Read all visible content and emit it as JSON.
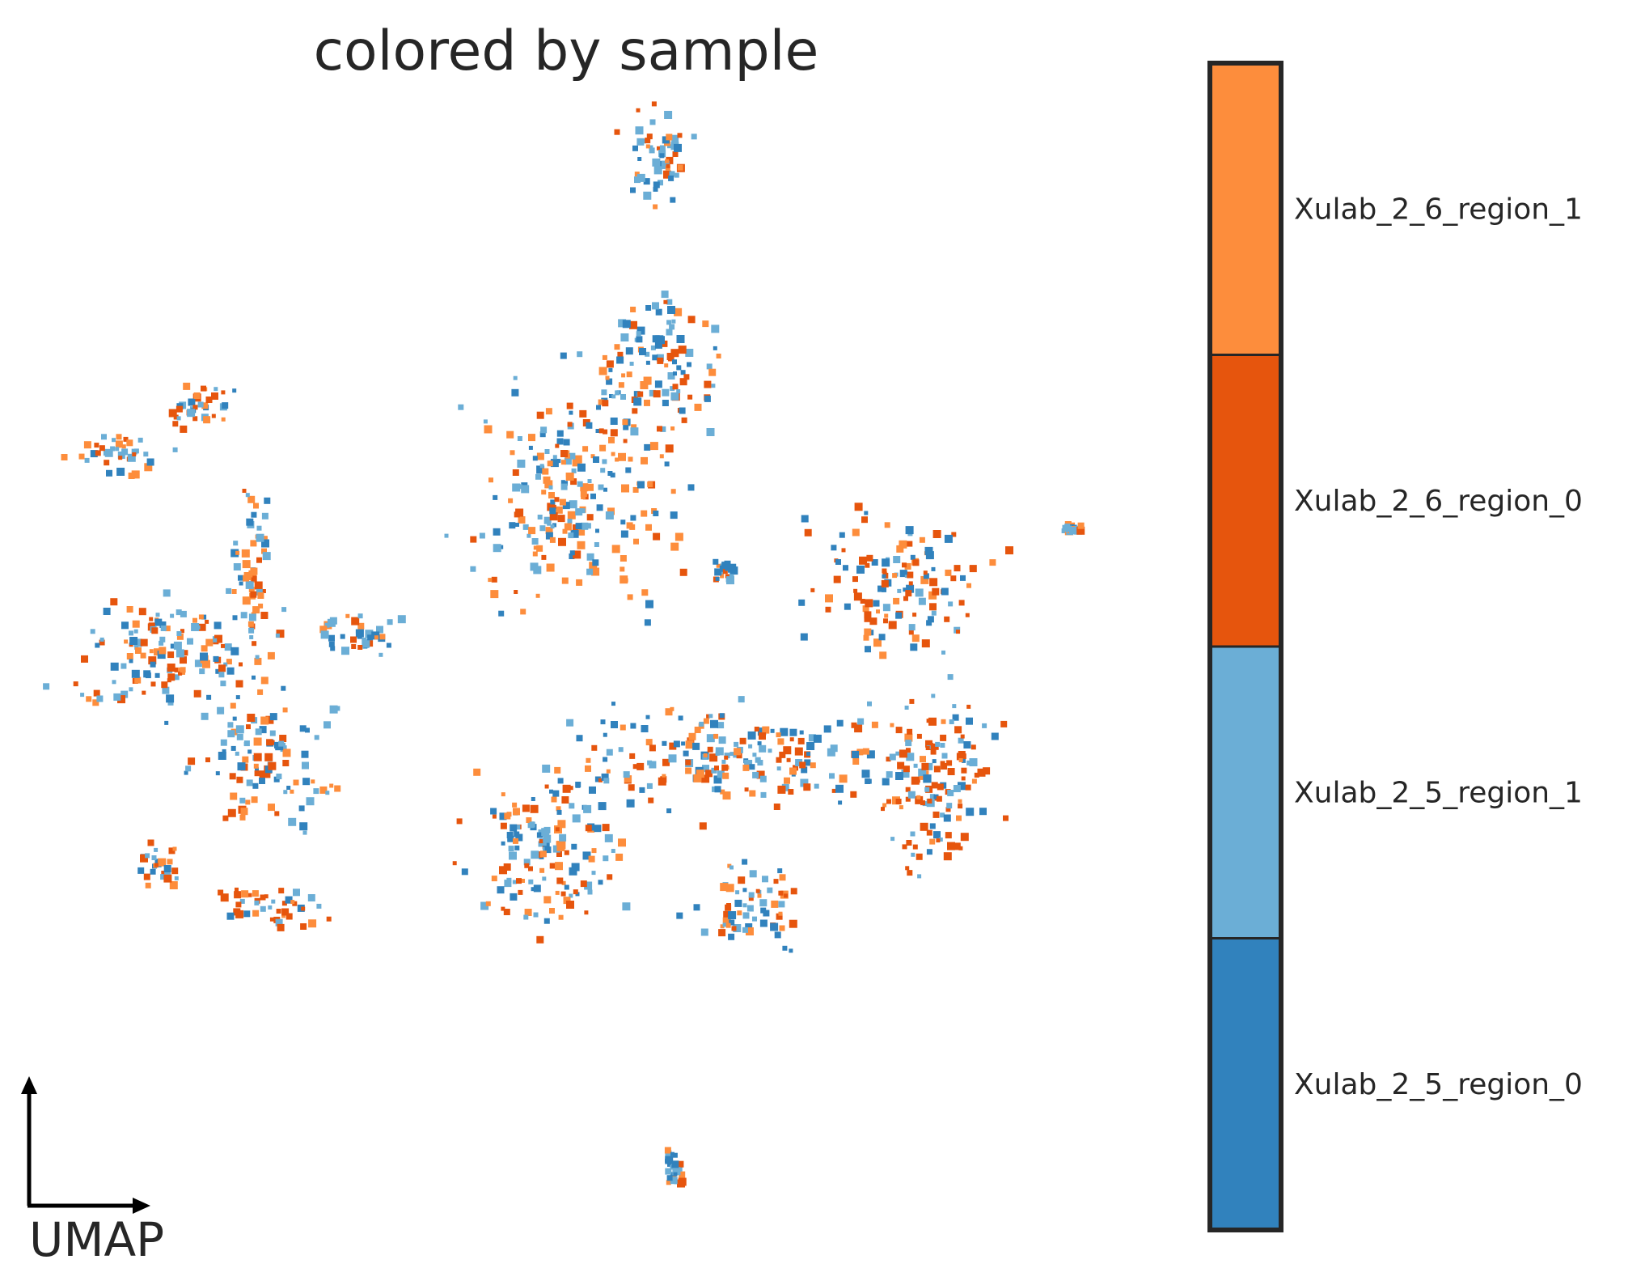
{
  "chart_data": {
    "type": "scatter",
    "title": "colored by sample",
    "axis_indicator_label": "UMAP",
    "xlabel": "",
    "ylabel": "",
    "grid": false,
    "legend": {
      "type": "categorical-colorbar",
      "placement": "right"
    },
    "categories": [
      {
        "name": "Xulab_2_6_region_1",
        "color": "#fd8d3c"
      },
      {
        "name": "Xulab_2_6_region_0",
        "color": "#e6550d"
      },
      {
        "name": "Xulab_2_5_region_1",
        "color": "#6baed6"
      },
      {
        "name": "Xulab_2_5_region_0",
        "color": "#3182bd"
      }
    ],
    "clusters": [
      {
        "label": "top island",
        "cx": 8.1,
        "cy": 9.3,
        "sx": 0.3,
        "sy": 0.5,
        "weights": [
          0.2,
          0.3,
          0.3,
          0.2
        ]
      },
      {
        "label": "small upper-left",
        "cx": 1.9,
        "cy": 5.8,
        "sx": 0.3,
        "sy": 0.2,
        "weights": [
          0.2,
          0.3,
          0.2,
          0.3
        ]
      },
      {
        "label": "far-left arm",
        "cx": 0.9,
        "cy": 5.1,
        "sx": 0.4,
        "sy": 0.2,
        "weights": [
          0.2,
          0.3,
          0.4,
          0.1
        ]
      },
      {
        "label": "left main cluster",
        "cx": 1.5,
        "cy": 2.3,
        "sx": 0.9,
        "sy": 0.6,
        "weights": [
          0.2,
          0.35,
          0.3,
          0.15
        ]
      },
      {
        "label": "left bridge",
        "cx": 2.6,
        "cy": 3.6,
        "sx": 0.2,
        "sy": 0.8,
        "weights": [
          0.35,
          0.15,
          0.3,
          0.2
        ]
      },
      {
        "label": "left lower lobe",
        "cx": 2.8,
        "cy": 0.9,
        "sx": 0.6,
        "sy": 0.6,
        "weights": [
          0.2,
          0.25,
          0.3,
          0.25
        ]
      },
      {
        "label": "left far-lower",
        "cx": 1.4,
        "cy": -0.6,
        "sx": 0.2,
        "sy": 0.2,
        "weights": [
          0.2,
          0.2,
          0.3,
          0.3
        ]
      },
      {
        "label": "left bottom lobe",
        "cx": 2.9,
        "cy": -1.2,
        "sx": 0.5,
        "sy": 0.2,
        "weights": [
          0.2,
          0.5,
          0.2,
          0.1
        ]
      },
      {
        "label": "left right arm",
        "cx": 4.1,
        "cy": 2.6,
        "sx": 0.4,
        "sy": 0.2,
        "weights": [
          0.1,
          0.2,
          0.3,
          0.4
        ]
      },
      {
        "label": "center upper",
        "cx": 7.0,
        "cy": 4.6,
        "sx": 0.9,
        "sy": 1.0,
        "weights": [
          0.35,
          0.15,
          0.3,
          0.2
        ]
      },
      {
        "label": "center-top arm",
        "cx": 8.1,
        "cy": 6.3,
        "sx": 0.6,
        "sy": 0.7,
        "weights": [
          0.2,
          0.2,
          0.3,
          0.3
        ]
      },
      {
        "label": "center lower-left",
        "cx": 6.6,
        "cy": -0.4,
        "sx": 0.7,
        "sy": 0.8,
        "weights": [
          0.25,
          0.25,
          0.25,
          0.25
        ]
      },
      {
        "label": "center bridge",
        "cx": 9.2,
        "cy": 0.9,
        "sx": 1.6,
        "sy": 0.5,
        "weights": [
          0.2,
          0.2,
          0.3,
          0.3
        ]
      },
      {
        "label": "center bottom lobe",
        "cx": 9.3,
        "cy": -1.2,
        "sx": 0.5,
        "sy": 0.4,
        "weights": [
          0.2,
          0.3,
          0.2,
          0.3
        ]
      },
      {
        "label": "right upper arm",
        "cx": 11.3,
        "cy": 3.3,
        "sx": 0.8,
        "sy": 0.6,
        "weights": [
          0.15,
          0.35,
          0.2,
          0.3
        ]
      },
      {
        "label": "right main",
        "cx": 11.8,
        "cy": 0.6,
        "sx": 0.6,
        "sy": 0.9,
        "weights": [
          0.1,
          0.4,
          0.3,
          0.2
        ]
      },
      {
        "label": "small center",
        "cx": 9.0,
        "cy": 3.5,
        "sx": 0.1,
        "sy": 0.1,
        "weights": [
          0.1,
          0.2,
          0.3,
          0.4
        ]
      },
      {
        "label": "bottom island",
        "cx": 8.3,
        "cy": -4.8,
        "sx": 0.1,
        "sy": 0.2,
        "weights": [
          0.1,
          0.1,
          0.4,
          0.4
        ]
      },
      {
        "label": "far-right speck",
        "cx": 13.7,
        "cy": 4.1,
        "sx": 0.1,
        "sy": 0.05,
        "weights": [
          0.2,
          0.2,
          0.4,
          0.2
        ]
      }
    ],
    "points_per_cluster": 90
  }
}
